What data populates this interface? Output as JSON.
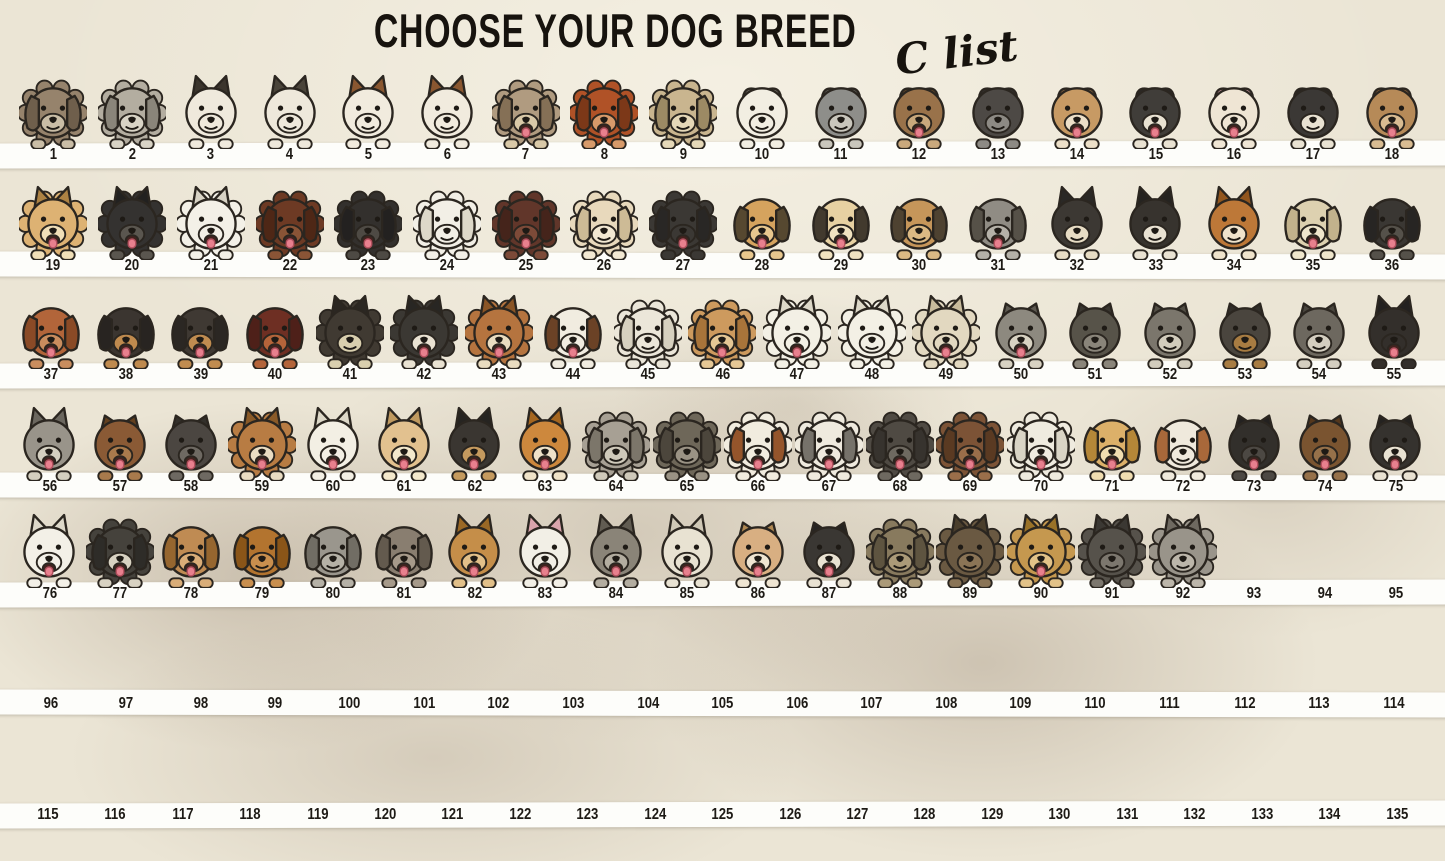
{
  "title": "CHOOSE YOUR DOG BREED",
  "list_label": "C list",
  "colors": {
    "background": "#ebe5d5",
    "smoke": "#8a7764",
    "strip": "#fdfdfa",
    "number_text": "#1d1a15",
    "title_text": "#17130e",
    "outline": "#2b2620",
    "tongue": "#e8808e"
  },
  "rows": [
    {
      "numbers": [
        1,
        2,
        3,
        4,
        5,
        6,
        7,
        8,
        9,
        10,
        11,
        12,
        13,
        14,
        15,
        16,
        17,
        18
      ],
      "dogs": [
        {
          "n": 1,
          "c": "#96836c",
          "e": "#6f5f4c",
          "m": "#c9bda6",
          "ear": "floppy",
          "f": true,
          "t": false
        },
        {
          "n": 2,
          "c": "#b3ada0",
          "e": "#8a857a",
          "m": "#d9d4c6",
          "ear": "floppy",
          "f": true,
          "t": false
        },
        {
          "n": 3,
          "c": "#efe9dc",
          "e": "#3b352d",
          "m": "#efe9dc",
          "ear": "up",
          "f": false,
          "t": false
        },
        {
          "n": 4,
          "c": "#eee8db",
          "e": "#4a443a",
          "m": "#eee8db",
          "ear": "up",
          "f": false,
          "t": false
        },
        {
          "n": 5,
          "c": "#f1ebde",
          "e": "#8a5730",
          "m": "#f1ebde",
          "ear": "up",
          "f": false,
          "t": false
        },
        {
          "n": 6,
          "c": "#f1ebde",
          "e": "#8a5730",
          "m": "#f1ebde",
          "ear": "up",
          "f": false,
          "t": false
        },
        {
          "n": 7,
          "c": "#b09b80",
          "e": "#857056",
          "m": "#d9c9a8",
          "ear": "floppy",
          "f": true,
          "t": true
        },
        {
          "n": 8,
          "c": "#b05227",
          "e": "#7c3818",
          "m": "#d79a6a",
          "ear": "floppy",
          "f": true,
          "t": true
        },
        {
          "n": 9,
          "c": "#c9b58f",
          "e": "#9c8a64",
          "m": "#e5d8b8",
          "ear": "floppy",
          "f": true,
          "t": false
        },
        {
          "n": 10,
          "c": "#f2eee2",
          "e": "#7d7970",
          "m": "#f2eee2",
          "ear": "half",
          "f": false,
          "t": false
        },
        {
          "n": 11,
          "c": "#8e8e8a",
          "e": "#66665f",
          "m": "#c9c6bc",
          "ear": "half",
          "f": false,
          "t": false
        },
        {
          "n": 12,
          "c": "#99724a",
          "e": "#6f4f2c",
          "m": "#c9a87c",
          "ear": "half",
          "f": false,
          "t": true
        },
        {
          "n": 13,
          "c": "#4d4945",
          "e": "#343230",
          "m": "#8d8a84",
          "ear": "half",
          "f": false,
          "t": false
        },
        {
          "n": 14,
          "c": "#c79a64",
          "e": "#946e44",
          "m": "#ecdfc8",
          "ear": "half",
          "f": false,
          "t": true
        },
        {
          "n": 15,
          "c": "#403d39",
          "e": "#2b2927",
          "m": "#e9e2d2",
          "ear": "half",
          "f": false,
          "t": true
        },
        {
          "n": 16,
          "c": "#efe5d4",
          "e": "#d6a0a8",
          "m": "#efe5d4",
          "ear": "half",
          "f": false,
          "t": true
        },
        {
          "n": 17,
          "c": "#3b3835",
          "e": "#272523",
          "m": "#e9e2d2",
          "ear": "half",
          "f": false,
          "t": false
        },
        {
          "n": 18,
          "c": "#b68a58",
          "e": "#85603a",
          "m": "#d9bc92",
          "ear": "half",
          "f": false,
          "t": true
        }
      ]
    },
    {
      "numbers": [
        19,
        20,
        21,
        22,
        23,
        24,
        25,
        26,
        27,
        28,
        29,
        30,
        31,
        32,
        33,
        34,
        35,
        36
      ],
      "dogs": [
        {
          "n": 19,
          "c": "#ddb273",
          "e": "#ad8243",
          "m": "#f0dfb8",
          "ear": "up",
          "f": true,
          "t": true
        },
        {
          "n": 20,
          "c": "#343230",
          "e": "#222120",
          "m": "#5a564f",
          "ear": "up",
          "f": true,
          "t": true
        },
        {
          "n": 21,
          "c": "#f3f0e7",
          "e": "#d8d3c5",
          "m": "#f3f0e7",
          "ear": "up",
          "f": true,
          "t": true
        },
        {
          "n": 22,
          "c": "#6d3a24",
          "e": "#4e2716",
          "m": "#8a5436",
          "ear": "floppy",
          "f": true,
          "t": true
        },
        {
          "n": 23,
          "c": "#33302d",
          "e": "#232120",
          "m": "#4e4a44",
          "ear": "floppy",
          "f": true,
          "t": true
        },
        {
          "n": 24,
          "c": "#f2efe6",
          "e": "#ddd8c9",
          "m": "#f2efe6",
          "ear": "floppy",
          "f": true,
          "t": false
        },
        {
          "n": 25,
          "c": "#61362a",
          "e": "#45241b",
          "m": "#7c4a38",
          "ear": "floppy",
          "f": true,
          "t": true
        },
        {
          "n": 26,
          "c": "#e8d9bc",
          "e": "#cdbb96",
          "m": "#f2e8d2",
          "ear": "floppy",
          "f": true,
          "t": false
        },
        {
          "n": 27,
          "c": "#3b3834",
          "e": "#292725",
          "m": "#3b3834",
          "ear": "floppy",
          "f": true,
          "t": true
        },
        {
          "n": 28,
          "c": "#d5a35e",
          "e": "#564830",
          "m": "#e8c78e",
          "ear": "floppy",
          "f": false,
          "t": true
        },
        {
          "n": 29,
          "c": "#e7d1a2",
          "e": "#423a2e",
          "m": "#f0e2c0",
          "ear": "floppy",
          "f": false,
          "t": true
        },
        {
          "n": 30,
          "c": "#c6965a",
          "e": "#4e4231",
          "m": "#dbb984",
          "ear": "floppy",
          "f": false,
          "t": false
        },
        {
          "n": 31,
          "c": "#908c84",
          "e": "#565148",
          "m": "#b5b1a8",
          "ear": "floppy",
          "f": false,
          "t": true
        },
        {
          "n": 32,
          "c": "#3c3833",
          "e": "#2a2825",
          "m": "#e7dcc4",
          "ear": "up",
          "f": false,
          "t": false
        },
        {
          "n": 33,
          "c": "#37332e",
          "e": "#252320",
          "m": "#e9e2d2",
          "ear": "up",
          "f": false,
          "t": false
        },
        {
          "n": 34,
          "c": "#bd7838",
          "e": "#92561e",
          "m": "#efe3cc",
          "ear": "up",
          "f": false,
          "t": false
        },
        {
          "n": 35,
          "c": "#ddd1b0",
          "e": "#c2b28c",
          "m": "#efe6cc",
          "ear": "floppy",
          "f": false,
          "t": true
        },
        {
          "n": 36,
          "c": "#3a3733",
          "e": "#272523",
          "m": "#55514a",
          "ear": "floppy",
          "f": false,
          "t": true
        }
      ]
    },
    {
      "numbers": [
        37,
        38,
        39,
        40,
        41,
        42,
        43,
        44,
        45,
        46,
        47,
        48,
        49,
        50,
        51,
        52,
        53,
        54,
        55
      ],
      "dogs": [
        {
          "n": 37,
          "c": "#b2653a",
          "e": "#8a4a26",
          "m": "#c98d5e",
          "ear": "floppy",
          "f": false,
          "t": true
        },
        {
          "n": 38,
          "c": "#3b3530",
          "e": "#282421",
          "m": "#bf8a4e",
          "ear": "floppy",
          "f": false,
          "t": true
        },
        {
          "n": 39,
          "c": "#3f3933",
          "e": "#2b2723",
          "m": "#c08c50",
          "ear": "floppy",
          "f": false,
          "t": true
        },
        {
          "n": 40,
          "c": "#6e2f23",
          "e": "#4e2019",
          "m": "#b4643a",
          "ear": "floppy",
          "f": false,
          "t": true
        },
        {
          "n": 41,
          "c": "#403a32",
          "e": "#2b2722",
          "m": "#d9cfae",
          "ear": "up",
          "f": true,
          "t": false
        },
        {
          "n": 42,
          "c": "#3b3833",
          "e": "#282623",
          "m": "#e9e2d2",
          "ear": "up",
          "f": true,
          "t": true
        },
        {
          "n": 43,
          "c": "#b5743f",
          "e": "#8a5526",
          "m": "#e9dcc0",
          "ear": "up",
          "f": true,
          "t": true
        },
        {
          "n": 44,
          "c": "#f1ece0",
          "e": "#6b4226",
          "m": "#f1ece0",
          "ear": "floppy",
          "f": false,
          "t": true
        },
        {
          "n": 45,
          "c": "#ebe6d9",
          "e": "#d6d0bf",
          "m": "#ebe6d9",
          "ear": "floppy",
          "f": true,
          "t": false
        },
        {
          "n": 46,
          "c": "#cd9a5e",
          "e": "#a8743a",
          "m": "#e5c795",
          "ear": "floppy",
          "f": true,
          "t": true
        },
        {
          "n": 47,
          "c": "#f3f0e5",
          "e": "#ddd8c8",
          "m": "#f3f0e5",
          "ear": "up",
          "f": true,
          "t": true
        },
        {
          "n": 48,
          "c": "#f3f0e5",
          "e": "#ddd8c8",
          "m": "#f3f0e5",
          "ear": "up",
          "f": true,
          "t": false
        },
        {
          "n": 49,
          "c": "#e2d8c0",
          "e": "#c8bb9c",
          "m": "#e2d8c0",
          "ear": "up",
          "f": true,
          "t": true
        },
        {
          "n": 50,
          "c": "#8d897f",
          "e": "#5e5a52",
          "m": "#d8d2c2",
          "ear": "fold",
          "f": false,
          "t": true
        },
        {
          "n": 51,
          "c": "#575349",
          "e": "#3a3731",
          "m": "#8a857a",
          "ear": "fold",
          "f": false,
          "t": false
        },
        {
          "n": 52,
          "c": "#7b766c",
          "e": "#545047",
          "m": "#d2ccbc",
          "ear": "fold",
          "f": false,
          "t": false
        },
        {
          "n": 53,
          "c": "#4a453e",
          "e": "#322f2a",
          "m": "#a87c42",
          "ear": "fold",
          "f": false,
          "t": false
        },
        {
          "n": 54,
          "c": "#6d685f",
          "e": "#4a463f",
          "m": "#d4cec0",
          "ear": "fold",
          "f": false,
          "t": false
        },
        {
          "n": 55,
          "c": "#332f2b",
          "e": "#232120",
          "m": "#332f2b",
          "ear": "up",
          "f": false,
          "t": true
        }
      ]
    },
    {
      "numbers": [
        56,
        57,
        58,
        59,
        60,
        61,
        62,
        63,
        64,
        65,
        66,
        67,
        68,
        69,
        70,
        71,
        72,
        73,
        74,
        75
      ],
      "dogs": [
        {
          "n": 56,
          "c": "#99948a",
          "e": "#6b675f",
          "m": "#d4cfc0",
          "ear": "up",
          "f": false,
          "t": true
        },
        {
          "n": 57,
          "c": "#8a5a35",
          "e": "#63401f",
          "m": "#a87a4c",
          "ear": "fold",
          "f": false,
          "t": true
        },
        {
          "n": 58,
          "c": "#4b4641",
          "e": "#33302b",
          "m": "#6e6962",
          "ear": "fold",
          "f": false,
          "t": true
        },
        {
          "n": 59,
          "c": "#b87c43",
          "e": "#8a5a28",
          "m": "#e9dcc2",
          "ear": "up",
          "f": true,
          "t": true
        },
        {
          "n": 60,
          "c": "#f3efe4",
          "e": "#ddd8c8",
          "m": "#f3efe4",
          "ear": "up",
          "f": false,
          "t": true
        },
        {
          "n": 61,
          "c": "#e2c18f",
          "e": "#c09a60",
          "m": "#f3e8cc",
          "ear": "up",
          "f": false,
          "t": true
        },
        {
          "n": 62,
          "c": "#3a3631",
          "e": "#262421",
          "m": "#c59a5e",
          "ear": "up",
          "f": false,
          "t": true
        },
        {
          "n": 63,
          "c": "#cd883d",
          "e": "#a5661f",
          "m": "#efe2c8",
          "ear": "up",
          "f": false,
          "t": true
        },
        {
          "n": 64,
          "c": "#a7a094",
          "e": "#7c766a",
          "m": "#cfc9ba",
          "ear": "floppy",
          "f": true,
          "t": false
        },
        {
          "n": 65,
          "c": "#6e6759",
          "e": "#4c463c",
          "m": "#9a9284",
          "ear": "floppy",
          "f": true,
          "t": false
        },
        {
          "n": 66,
          "c": "#f1ecdf",
          "e": "#95552b",
          "m": "#f1ecdf",
          "ear": "floppy",
          "f": true,
          "t": true
        },
        {
          "n": 67,
          "c": "#efeade",
          "e": "#76726a",
          "m": "#efeade",
          "ear": "floppy",
          "f": true,
          "t": true
        },
        {
          "n": 68,
          "c": "#4f4a43",
          "e": "#37332e",
          "m": "#6e6960",
          "ear": "floppy",
          "f": true,
          "t": true
        },
        {
          "n": 69,
          "c": "#7c5336",
          "e": "#5a3a22",
          "m": "#9a6e4a",
          "ear": "floppy",
          "f": true,
          "t": true
        },
        {
          "n": 70,
          "c": "#efebdf",
          "e": "#d9d4c5",
          "m": "#efebdf",
          "ear": "floppy",
          "f": true,
          "t": true
        },
        {
          "n": 71,
          "c": "#dcb069",
          "e": "#b58738",
          "m": "#f0ddb0",
          "ear": "floppy",
          "f": false,
          "t": true
        },
        {
          "n": 72,
          "c": "#efe9dc",
          "e": "#a8683a",
          "m": "#efe9dc",
          "ear": "floppy",
          "f": false,
          "t": false
        },
        {
          "n": 73,
          "c": "#322f2b",
          "e": "#232120",
          "m": "#4c4843",
          "ear": "fold",
          "f": false,
          "t": true
        },
        {
          "n": 74,
          "c": "#7a5430",
          "e": "#55371c",
          "m": "#96714a",
          "ear": "fold",
          "f": false,
          "t": true
        },
        {
          "n": 75,
          "c": "#35322e",
          "e": "#242220",
          "m": "#e9e2d2",
          "ear": "fold",
          "f": false,
          "t": true
        }
      ]
    },
    {
      "numbers": [
        76,
        77,
        78,
        79,
        80,
        81,
        82,
        83,
        84,
        85,
        86,
        87,
        88,
        89,
        90,
        91,
        92,
        93,
        94,
        95
      ],
      "dogs": [
        {
          "n": 76,
          "c": "#f3f0e7",
          "e": "#ddd8c9",
          "m": "#f3f0e7",
          "ear": "up",
          "f": false,
          "t": true
        },
        {
          "n": 77,
          "c": "#45423c",
          "e": "#2e2c28",
          "m": "#d8d2c2",
          "ear": "floppy",
          "f": true,
          "t": true
        },
        {
          "n": 78,
          "c": "#bf8b53",
          "e": "#96662f",
          "m": "#d9ad78",
          "ear": "floppy",
          "f": false,
          "t": true
        },
        {
          "n": 79,
          "c": "#b3742f",
          "e": "#8a5518",
          "m": "#c98f4e",
          "ear": "floppy",
          "f": false,
          "t": false
        },
        {
          "n": 80,
          "c": "#9a968d",
          "e": "#716d64",
          "m": "#b5b1a6",
          "ear": "floppy",
          "f": false,
          "t": false
        },
        {
          "n": 81,
          "c": "#897e70",
          "e": "#635a4e",
          "m": "#a69a8a",
          "ear": "floppy",
          "f": false,
          "t": true
        },
        {
          "n": 82,
          "c": "#c58e49",
          "e": "#9a6825",
          "m": "#e2c089",
          "ear": "up",
          "f": false,
          "t": true
        },
        {
          "n": 83,
          "c": "#f2efe6",
          "e": "#d9a4ac",
          "m": "#f2efe6",
          "ear": "up",
          "f": false,
          "t": true
        },
        {
          "n": 84,
          "c": "#8a8478",
          "e": "#615c52",
          "m": "#b3ada0",
          "ear": "up",
          "f": false,
          "t": true
        },
        {
          "n": 85,
          "c": "#e8e2d2",
          "e": "#cfc8b6",
          "m": "#e8e2d2",
          "ear": "up",
          "f": false,
          "t": true
        },
        {
          "n": 86,
          "c": "#d8af82",
          "e": "#b08852",
          "m": "#efe5d2",
          "ear": "fold",
          "f": false,
          "t": true
        },
        {
          "n": 87,
          "c": "#3a3733",
          "e": "#262422",
          "m": "#e9e2d2",
          "ear": "fold",
          "f": false,
          "t": true
        },
        {
          "n": 88,
          "c": "#887a5e",
          "e": "#5e5440",
          "m": "#ab9a78",
          "ear": "floppy",
          "f": true,
          "t": false
        },
        {
          "n": 89,
          "c": "#6a5942",
          "e": "#4a3e2c",
          "m": "#8a7456",
          "ear": "up",
          "f": true,
          "t": false
        },
        {
          "n": 90,
          "c": "#c5984f",
          "e": "#9a7228",
          "m": "#e2c288",
          "ear": "up",
          "f": true,
          "t": true
        },
        {
          "n": 91,
          "c": "#56524b",
          "e": "#3b3833",
          "m": "#7c776e",
          "ear": "up",
          "f": true,
          "t": false
        },
        {
          "n": 92,
          "c": "#99948a",
          "e": "#6e6960",
          "m": "#bcb6aa",
          "ear": "up",
          "f": true,
          "t": false
        },
        null,
        null,
        null
      ]
    },
    {
      "numbers": [
        96,
        97,
        98,
        99,
        100,
        101,
        102,
        103,
        104,
        105,
        106,
        107,
        108,
        109,
        110,
        111,
        112,
        113,
        114
      ],
      "dogs": []
    },
    {
      "numbers": [
        115,
        116,
        117,
        118,
        119,
        120,
        121,
        122,
        123,
        124,
        125,
        126,
        127,
        128,
        129,
        130,
        131,
        132,
        133,
        134,
        135
      ],
      "dogs": []
    }
  ]
}
